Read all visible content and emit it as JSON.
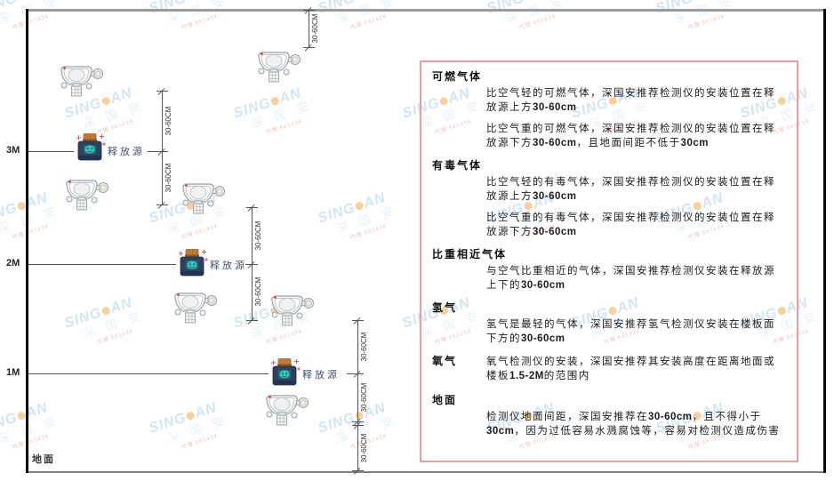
{
  "watermark": {
    "brand_left": "SING",
    "brand_right": "AN",
    "cn": "深 国 安",
    "sub": "代理:661434"
  },
  "diagram": {
    "floor_label": "地面",
    "height_labels": [
      "3M",
      "2M",
      "1M"
    ],
    "source_label": "释放源",
    "dim_label": "30-60CM"
  },
  "panel": {
    "sections": [
      {
        "title": "可燃气体",
        "inline": false,
        "paragraphs": [
          "比空气轻的可燃气体，深国安推荐检测仪的安装位置在释放源上方30-60cm",
          "比空气重的可燃气体，深国安推荐检测仪的安装位置在释放源下方30-60cm，且地面间距不低于30cm"
        ]
      },
      {
        "title": "有毒气体",
        "inline": false,
        "paragraphs": [
          "比空气轻的有毒气体，深国安推荐检测仪的安装位置在释放源上方30-60cm",
          "比空气重的有毒气体，深国安推荐检测仪的安装位置在释放源下方30-60cm"
        ]
      },
      {
        "title": "比重相近气体",
        "inline": false,
        "paragraphs": [
          "与空气比重相近的气体，深国安推荐检测仪安装在释放源上下的30-60cm"
        ]
      },
      {
        "title": "氢气",
        "inline": false,
        "paragraphs": [
          "氢气是最轻的气体，深国安推荐氢气检测仪安装在楼板面下方的30-60cm"
        ]
      },
      {
        "title": "氧气",
        "inline": true,
        "paragraphs": [
          "氧气检测仪的安装，深国安推荐其安装高度在距离地面或楼板1.5-2M的范围内"
        ]
      },
      {
        "title": "地面",
        "inline": false,
        "paragraphs": [
          "检测仪地面间距，深国安推荐在30-60cm，且不得小于30cm，因为过低容易水溅腐蚀等，容易对检测仪造成伤害"
        ]
      }
    ]
  }
}
